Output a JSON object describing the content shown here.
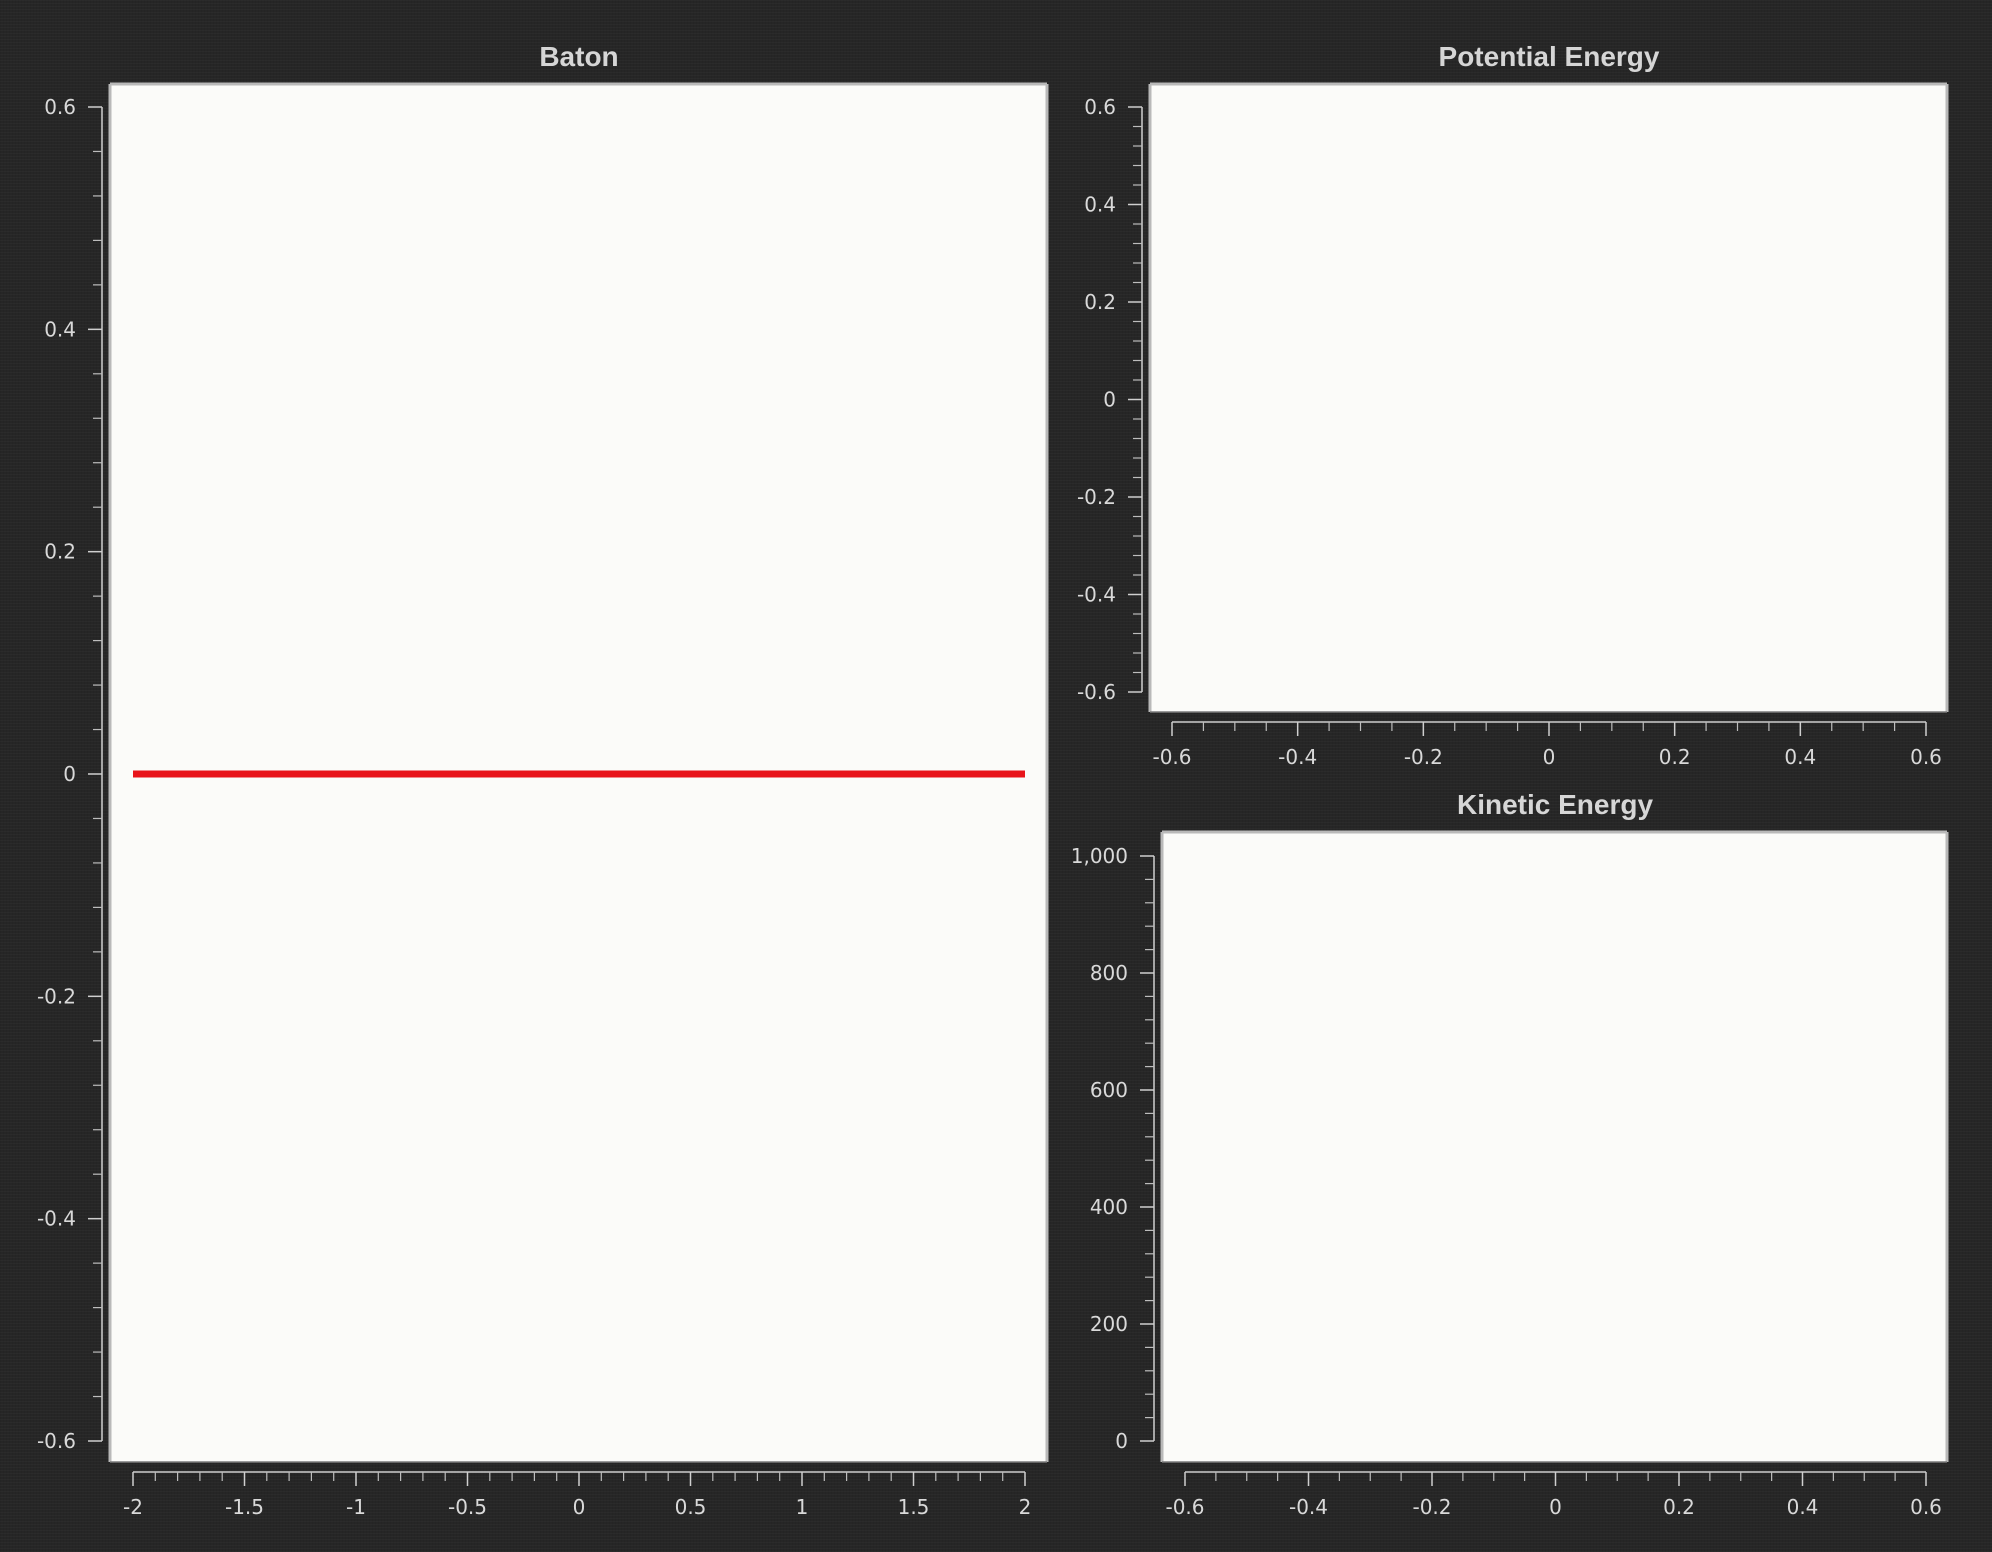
{
  "chart_data": [
    {
      "id": "baton",
      "type": "line",
      "title": "Baton",
      "xlabel": "",
      "ylabel": "",
      "xlim": [
        -2,
        2
      ],
      "ylim": [
        -0.6,
        0.6
      ],
      "x_ticks": [
        -2,
        -1.5,
        -1,
        -0.5,
        0,
        0.5,
        1,
        1.5,
        2
      ],
      "x_tick_labels": [
        "-2",
        "-1.5",
        "-1",
        "-0.5",
        "0",
        "0.5",
        "1",
        "1.5",
        "2"
      ],
      "y_ticks": [
        0.6,
        0.4,
        0.2,
        0,
        -0.2,
        -0.4,
        -0.6
      ],
      "y_tick_labels": [
        "0.6",
        "0.4",
        "0.2",
        "0",
        "-0.2",
        "-0.4",
        "-0.6"
      ],
      "grid": false,
      "series": [
        {
          "color": "#e8141a",
          "x": [
            -2,
            2
          ],
          "y": [
            0,
            0
          ]
        }
      ]
    },
    {
      "id": "potential-energy",
      "type": "line",
      "title": "Potential Energy",
      "xlabel": "",
      "ylabel": "",
      "xlim": [
        -0.6,
        0.6
      ],
      "ylim": [
        -0.6,
        0.6
      ],
      "x_ticks": [
        -0.6,
        -0.4,
        -0.2,
        0,
        0.2,
        0.4,
        0.6
      ],
      "x_tick_labels": [
        "-0.6",
        "-0.4",
        "-0.2",
        "0",
        "0.2",
        "0.4",
        "0.6"
      ],
      "y_ticks": [
        0.6,
        0.4,
        0.2,
        0,
        -0.2,
        -0.4,
        -0.6
      ],
      "y_tick_labels": [
        "0.6",
        "0.4",
        "0.2",
        "0",
        "-0.2",
        "-0.4",
        "-0.6"
      ],
      "grid": false,
      "series": []
    },
    {
      "id": "kinetic-energy",
      "type": "line",
      "title": "Kinetic Energy",
      "xlabel": "",
      "ylabel": "",
      "xlim": [
        -0.6,
        0.6
      ],
      "ylim": [
        0,
        1000
      ],
      "x_ticks": [
        -0.6,
        -0.4,
        -0.2,
        0,
        0.2,
        0.4,
        0.6
      ],
      "x_tick_labels": [
        "-0.6",
        "-0.4",
        "-0.2",
        "0",
        "0.2",
        "0.4",
        "0.6"
      ],
      "y_ticks": [
        1000,
        800,
        600,
        400,
        200,
        0
      ],
      "y_tick_labels": [
        "1,000",
        "800",
        "600",
        "400",
        "200",
        "0"
      ],
      "grid": false,
      "series": []
    }
  ]
}
